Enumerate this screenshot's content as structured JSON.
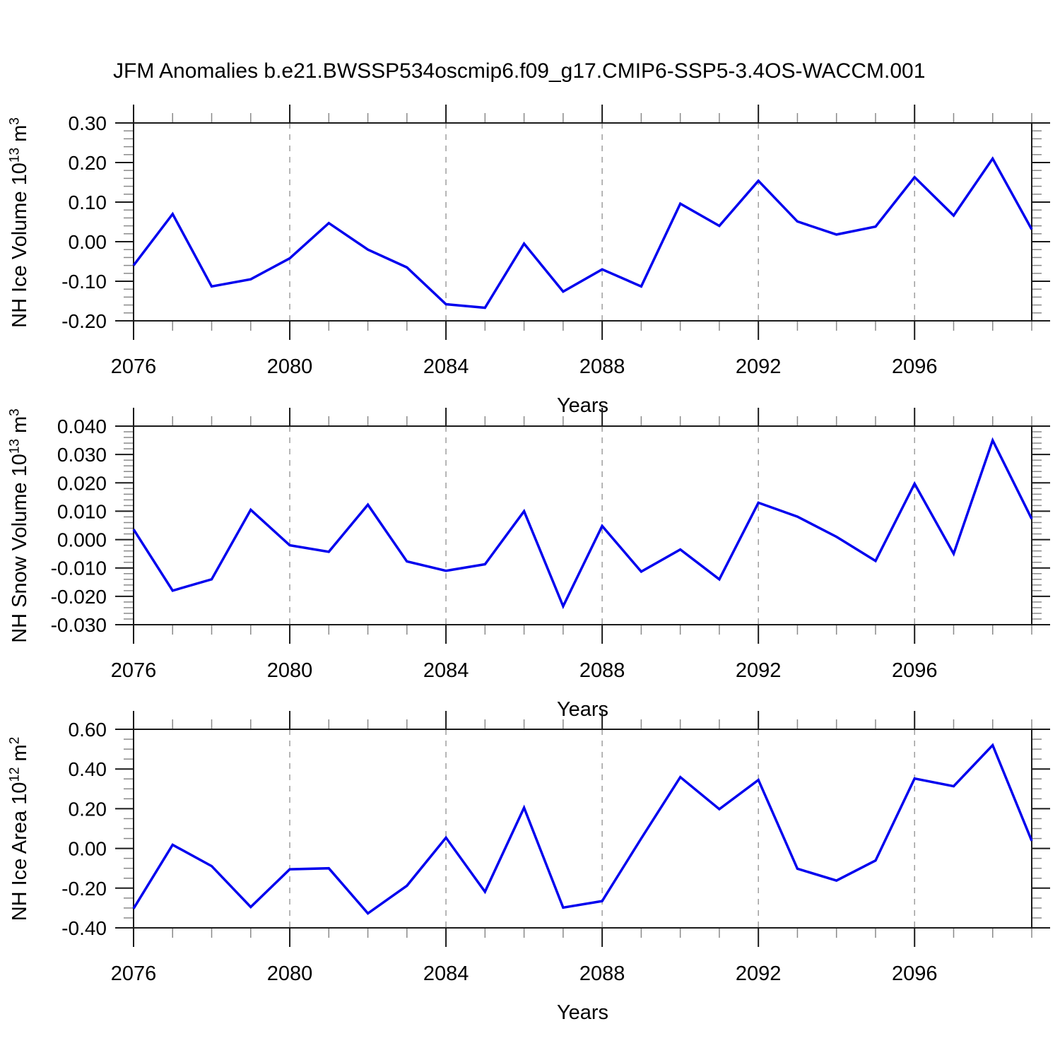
{
  "title": "JFM Anomalies b.e21.BWSSP534oscmip6.f09_g17.CMIP6-SSP5-3.4OS-WACCM.001",
  "xlabel": "Years",
  "colors": {
    "line": "#0000EE",
    "frame": "#1a1a1a",
    "grid": "#9e9e9e",
    "minor_tick": "#8a8a8a",
    "major_tick": "#1a1a1a",
    "text": "#000000",
    "background": "#ffffff"
  },
  "chart_data": [
    {
      "type": "line",
      "name": "nh-ice-volume",
      "ylabel": "NH Ice Volume 10^13 m^3",
      "ylabel_parts": {
        "base": "NH Ice Volume 10",
        "sup1": "13",
        "mid": " m",
        "sup2": "3"
      },
      "xlabel": "Years",
      "x": [
        2076,
        2077,
        2078,
        2079,
        2080,
        2081,
        2082,
        2083,
        2084,
        2085,
        2086,
        2087,
        2088,
        2089,
        2090,
        2091,
        2092,
        2093,
        2094,
        2095,
        2096,
        2097,
        2098,
        2099
      ],
      "values": [
        -0.06,
        0.07,
        -0.113,
        -0.095,
        -0.042,
        0.047,
        -0.02,
        -0.065,
        -0.158,
        -0.167,
        -0.005,
        -0.126,
        -0.07,
        -0.113,
        0.096,
        0.04,
        0.154,
        0.051,
        0.018,
        0.038,
        0.163,
        0.066,
        0.21,
        0.031
      ],
      "ylim": [
        -0.2,
        0.3
      ],
      "yticks": [
        0.3,
        0.2,
        0.1,
        0.0,
        -0.1,
        -0.2
      ],
      "ytick_labels": [
        "0.30",
        "0.20",
        "0.10",
        "0.00",
        "-0.10",
        "-0.20"
      ],
      "y_minor_per_interval": 4,
      "xticks_major": [
        2076,
        2080,
        2084,
        2088,
        2092,
        2096
      ],
      "xtick_labels": [
        "2076",
        "2080",
        "2084",
        "2088",
        "2092",
        "2096"
      ],
      "gridlines_x": [
        2080,
        2084,
        2088,
        2092,
        2096
      ],
      "grid": "vertical-dashed",
      "legend": "none"
    },
    {
      "type": "line",
      "name": "nh-snow-volume",
      "ylabel": "NH Snow Volume 10^13 m^3",
      "ylabel_parts": {
        "base": "NH Snow Volume 10",
        "sup1": "13",
        "mid": " m",
        "sup2": "3"
      },
      "xlabel": "Years",
      "x": [
        2076,
        2077,
        2078,
        2079,
        2080,
        2081,
        2082,
        2083,
        2084,
        2085,
        2086,
        2087,
        2088,
        2089,
        2090,
        2091,
        2092,
        2093,
        2094,
        2095,
        2096,
        2097,
        2098,
        2099
      ],
      "values": [
        0.0036,
        -0.018,
        -0.014,
        0.0105,
        -0.002,
        -0.0043,
        0.0123,
        -0.0077,
        -0.011,
        -0.0087,
        0.01,
        -0.0235,
        0.0048,
        -0.0113,
        -0.0035,
        -0.014,
        0.013,
        0.0081,
        0.001,
        -0.0075,
        0.0197,
        -0.005,
        0.035,
        0.0073
      ],
      "ylim": [
        -0.03,
        0.04
      ],
      "yticks": [
        0.04,
        0.03,
        0.02,
        0.01,
        0.0,
        -0.01,
        -0.02,
        -0.03
      ],
      "ytick_labels": [
        "0.040",
        "0.030",
        "0.020",
        "0.010",
        "0.000",
        "-0.010",
        "-0.020",
        "-0.030"
      ],
      "y_minor_per_interval": 4,
      "xticks_major": [
        2076,
        2080,
        2084,
        2088,
        2092,
        2096
      ],
      "xtick_labels": [
        "2076",
        "2080",
        "2084",
        "2088",
        "2092",
        "2096"
      ],
      "gridlines_x": [
        2080,
        2084,
        2088,
        2092,
        2096
      ],
      "grid": "vertical-dashed",
      "legend": "none"
    },
    {
      "type": "line",
      "name": "nh-ice-area",
      "ylabel": "NH Ice Area 10^12 m^2",
      "ylabel_parts": {
        "base": "NH Ice Area 10",
        "sup1": "12",
        "mid": " m",
        "sup2": "2"
      },
      "xlabel": "Years",
      "x": [
        2076,
        2077,
        2078,
        2079,
        2080,
        2081,
        2082,
        2083,
        2084,
        2085,
        2086,
        2087,
        2088,
        2089,
        2090,
        2091,
        2092,
        2093,
        2094,
        2095,
        2096,
        2097,
        2098,
        2099
      ],
      "values": [
        -0.303,
        0.018,
        -0.089,
        -0.295,
        -0.105,
        -0.1,
        -0.327,
        -0.188,
        0.054,
        -0.218,
        0.205,
        -0.298,
        -0.265,
        0.05,
        0.359,
        0.198,
        0.345,
        -0.102,
        -0.162,
        -0.061,
        0.352,
        0.313,
        0.52,
        0.038
      ],
      "ylim": [
        -0.4,
        0.6
      ],
      "yticks": [
        0.6,
        0.4,
        0.2,
        0.0,
        -0.2,
        -0.4
      ],
      "ytick_labels": [
        "0.60",
        "0.40",
        "0.20",
        "0.00",
        "-0.20",
        "-0.40"
      ],
      "y_minor_per_interval": 3,
      "xticks_major": [
        2076,
        2080,
        2084,
        2088,
        2092,
        2096
      ],
      "xtick_labels": [
        "2076",
        "2080",
        "2084",
        "2088",
        "2092",
        "2096"
      ],
      "gridlines_x": [
        2080,
        2084,
        2088,
        2092,
        2096
      ],
      "grid": "vertical-dashed",
      "legend": "none"
    }
  ]
}
